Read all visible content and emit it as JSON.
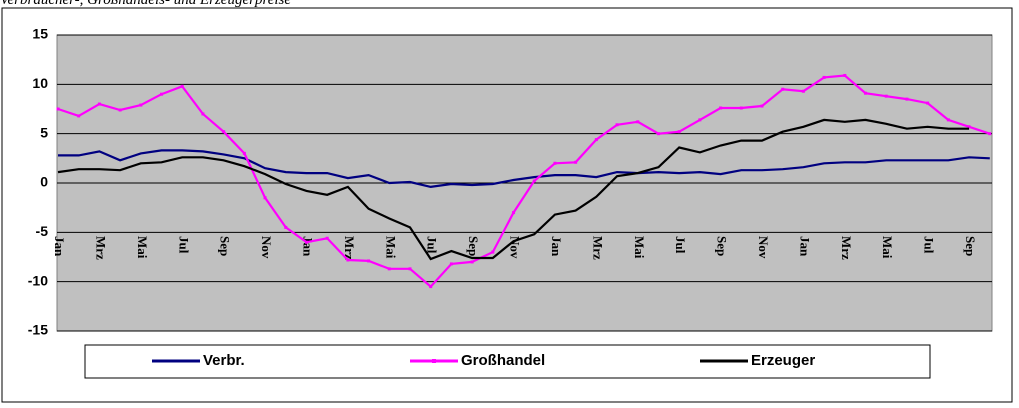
{
  "chart_data": {
    "type": "line",
    "title": "Verbraucher-, Großhandels- und Erzeugerpreise",
    "categories": [
      "Jan",
      null,
      "Mrz",
      null,
      "Mai",
      null,
      "Jul",
      null,
      "Sep",
      null,
      "Nov",
      null,
      "Jan",
      null,
      "Mrz",
      null,
      "Mai",
      null,
      "Jul",
      null,
      "Sep",
      null,
      "Nov",
      null,
      "Jan",
      null,
      "Mrz",
      null,
      "Mai",
      null,
      "Jul",
      null,
      "Sep",
      null,
      "Nov",
      null,
      "Jan",
      null,
      "Mrz",
      null,
      "Mai",
      null,
      "Jul",
      null,
      "Sep",
      null
    ],
    "series": [
      {
        "name": "Verbr.",
        "color": "#000080",
        "marker": false,
        "values": [
          2.8,
          2.8,
          3.2,
          2.3,
          3.0,
          3.3,
          3.3,
          3.2,
          2.9,
          2.5,
          1.5,
          1.1,
          1.0,
          1.0,
          0.5,
          0.8,
          0.0,
          0.1,
          -0.4,
          -0.1,
          -0.2,
          -0.1,
          0.3,
          0.6,
          0.8,
          0.8,
          0.6,
          1.1,
          1.0,
          1.1,
          1.0,
          1.1,
          0.9,
          1.3,
          1.3,
          1.4,
          1.6,
          2.0,
          2.1,
          2.1,
          2.3,
          2.3,
          2.3,
          2.3,
          2.6,
          2.5
        ]
      },
      {
        "name": "Großhandel",
        "color": "#ff00ff",
        "marker": true,
        "values": [
          7.5,
          6.8,
          8.0,
          7.4,
          7.9,
          9.0,
          9.8,
          7.0,
          5.2,
          3.0,
          -1.5,
          -4.5,
          -6.0,
          -5.6,
          -7.8,
          -7.9,
          -8.7,
          -8.7,
          -10.5,
          -8.2,
          -8.0,
          -7.0,
          -3.0,
          0.2,
          2.0,
          2.1,
          4.4,
          5.9,
          6.2,
          5.0,
          5.2,
          6.4,
          7.6,
          7.6,
          7.8,
          9.5,
          9.3,
          10.7,
          10.9,
          9.1,
          8.8,
          8.5,
          8.1,
          6.4,
          5.7,
          5.0
        ]
      },
      {
        "name": "Erzeuger",
        "color": "#000000",
        "marker": false,
        "values": [
          1.1,
          1.4,
          1.4,
          1.3,
          2.0,
          2.1,
          2.6,
          2.6,
          2.3,
          1.7,
          0.9,
          -0.1,
          -0.8,
          -1.2,
          -0.4,
          -2.6,
          -3.6,
          -4.5,
          -7.7,
          -6.9,
          -7.6,
          -7.6,
          -5.9,
          -5.2,
          -3.2,
          -2.8,
          -1.4,
          0.7,
          1.0,
          1.6,
          3.6,
          3.1,
          3.8,
          4.3,
          4.3,
          5.2,
          5.7,
          6.4,
          6.2,
          6.4,
          6.0,
          5.5,
          5.7,
          5.5,
          5.5,
          null
        ]
      }
    ],
    "ylim": [
      -15,
      15
    ],
    "yticks": [
      -15,
      -10,
      -5,
      0,
      5,
      10,
      15
    ],
    "grid": true,
    "legend": "bottom"
  }
}
